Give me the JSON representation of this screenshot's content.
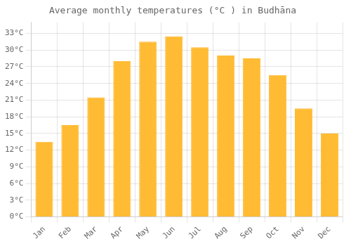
{
  "chart_data": {
    "type": "bar",
    "title": "Average monthly temperatures (°C ) in Budhāna",
    "categories": [
      "Jan",
      "Feb",
      "Mar",
      "Apr",
      "May",
      "Jun",
      "Jul",
      "Aug",
      "Sep",
      "Oct",
      "Nov",
      "Dec"
    ],
    "values": [
      13.5,
      16.5,
      21.5,
      28.0,
      31.5,
      32.5,
      30.5,
      29.0,
      28.5,
      25.5,
      19.5,
      15.0
    ],
    "color": "#FFBB33",
    "ylim": [
      0,
      35
    ],
    "yticks": [
      {
        "value": 0,
        "label": "0°C"
      },
      {
        "value": 3,
        "label": "3°C"
      },
      {
        "value": 6,
        "label": "6°C"
      },
      {
        "value": 9,
        "label": "9°C"
      },
      {
        "value": 12,
        "label": "12°C"
      },
      {
        "value": 15,
        "label": "15°C"
      },
      {
        "value": 18,
        "label": "18°C"
      },
      {
        "value": 21,
        "label": "21°C"
      },
      {
        "value": 24,
        "label": "24°C"
      },
      {
        "value": 27,
        "label": "27°C"
      },
      {
        "value": 30,
        "label": "30°C"
      },
      {
        "value": 33,
        "label": "33°C"
      }
    ],
    "grid": true
  }
}
